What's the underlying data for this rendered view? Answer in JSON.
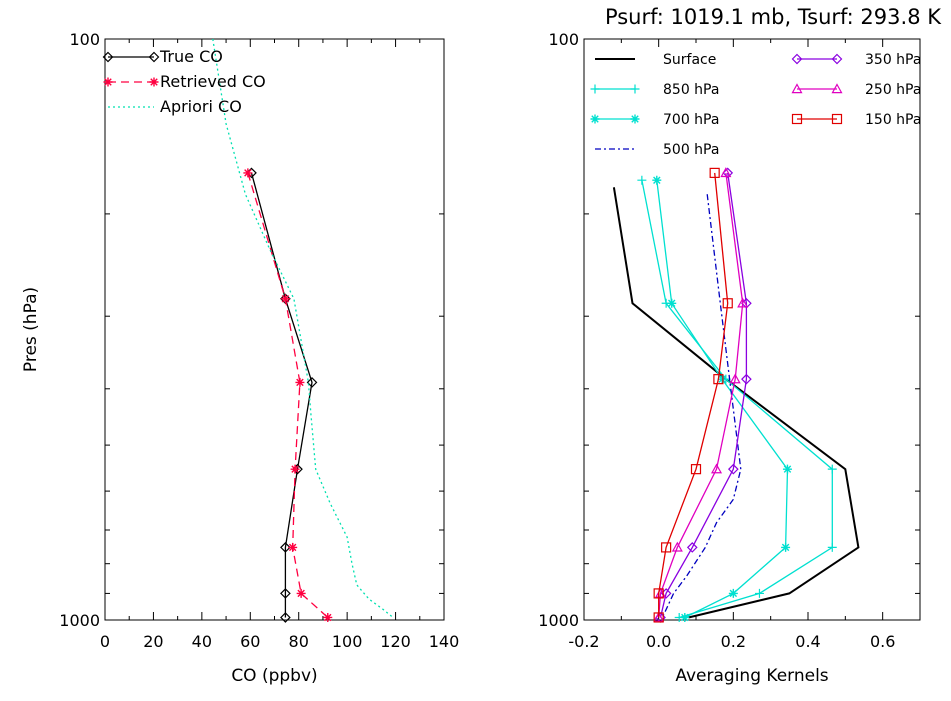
{
  "chart_data": [
    {
      "type": "line",
      "title": "",
      "xlabel": "CO (ppbv)",
      "ylabel": "Pres (hPa)",
      "xlim": [
        0,
        140
      ],
      "ylim_log": [
        1000,
        100
      ],
      "x_ticks": [
        0,
        20,
        40,
        60,
        80,
        100,
        120,
        140
      ],
      "y_tick_labels": [
        {
          "value": 100,
          "label": "100"
        },
        {
          "value": 1000,
          "label": "1000"
        }
      ],
      "legend_position": "top-left",
      "series": [
        {
          "name": "True CO",
          "color": "#000000",
          "dash": "",
          "marker": "diamond",
          "points": [
            [
              60.5,
              170
            ],
            [
              74.5,
              280
            ],
            [
              85.5,
              390
            ],
            [
              79.5,
              550
            ],
            [
              74.5,
              750
            ],
            [
              74.5,
              900
            ],
            [
              74.5,
              990
            ]
          ]
        },
        {
          "name": "Retrieved CO",
          "color": "#ff0040",
          "dash": "8,5",
          "marker": "asterisk",
          "points": [
            [
              59,
              170
            ],
            [
              74.5,
              280
            ],
            [
              80.5,
              390
            ],
            [
              78.5,
              550
            ],
            [
              77.5,
              750
            ],
            [
              81,
              900
            ],
            [
              92,
              990
            ]
          ]
        },
        {
          "name": "Apriori CO",
          "color": "#00e0b0",
          "dash": "2,3",
          "marker": "none",
          "points": [
            [
              44.5,
              100
            ],
            [
              50,
              140
            ],
            [
              58,
              185
            ],
            [
              68,
              230
            ],
            [
              78,
              280
            ],
            [
              84,
              390
            ],
            [
              85,
              440
            ],
            [
              87,
              550
            ],
            [
              93,
              630
            ],
            [
              100,
              720
            ],
            [
              102,
              800
            ],
            [
              104,
              870
            ],
            [
              109,
              920
            ],
            [
              115,
              960
            ],
            [
              119,
              990
            ]
          ]
        }
      ]
    },
    {
      "type": "line",
      "title": "Psurf: 1019.1 mb, Tsurf: 293.8 K",
      "xlabel": "Averaging Kernels",
      "ylabel": "",
      "xlim": [
        -0.2,
        0.7
      ],
      "ylim_log": [
        1000,
        100
      ],
      "x_ticks": [
        -0.2,
        0.0,
        0.2,
        0.4,
        0.6
      ],
      "x_tick_labels": [
        "-0.2",
        "0.0",
        "0.2",
        "0.4",
        "0.6"
      ],
      "y_tick_labels": [
        {
          "value": 100,
          "label": "100"
        },
        {
          "value": 1000,
          "label": "1000"
        }
      ],
      "legend_position": "top",
      "series": [
        {
          "name": "Surface",
          "color": "#000000",
          "dash": "",
          "marker": "none",
          "width": 2,
          "points": [
            [
              -0.12,
              180
            ],
            [
              -0.07,
              285
            ],
            [
              0.18,
              385
            ],
            [
              0.5,
              550
            ],
            [
              0.535,
              750
            ],
            [
              0.35,
              900
            ],
            [
              0.08,
              990
            ]
          ]
        },
        {
          "name": "850 hPa",
          "color": "#00e0d0",
          "dash": "",
          "marker": "plus",
          "points": [
            [
              -0.045,
              175
            ],
            [
              0.02,
              285
            ],
            [
              0.18,
              385
            ],
            [
              0.465,
              550
            ],
            [
              0.465,
              750
            ],
            [
              0.27,
              900
            ],
            [
              0.055,
              990
            ]
          ]
        },
        {
          "name": "700 hPa",
          "color": "#00e0d0",
          "dash": "",
          "marker": "asterisk",
          "points": [
            [
              -0.005,
              175
            ],
            [
              0.035,
              285
            ],
            [
              0.17,
              385
            ],
            [
              0.345,
              550
            ],
            [
              0.34,
              750
            ],
            [
              0.2,
              900
            ],
            [
              0.07,
              990
            ]
          ]
        },
        {
          "name": "500 hPa",
          "color": "#0000c0",
          "dash": "6,3,2,3",
          "marker": "none",
          "points": [
            [
              0.13,
              185
            ],
            [
              0.165,
              285
            ],
            [
              0.19,
              385
            ],
            [
              0.22,
              550
            ],
            [
              0.2,
              620
            ],
            [
              0.155,
              680
            ],
            [
              0.125,
              750
            ],
            [
              0.075,
              840
            ],
            [
              0.04,
              900
            ],
            [
              0.01,
              990
            ]
          ]
        },
        {
          "name": "350 hPa",
          "color": "#8a00e0",
          "dash": "",
          "marker": "diamond",
          "points": [
            [
              0.185,
              170
            ],
            [
              0.235,
              285
            ],
            [
              0.235,
              385
            ],
            [
              0.2,
              550
            ],
            [
              0.09,
              750
            ],
            [
              0.02,
              900
            ],
            [
              0.005,
              990
            ]
          ]
        },
        {
          "name": "250 hPa",
          "color": "#e000c0",
          "dash": "",
          "marker": "triangle",
          "points": [
            [
              0.18,
              170
            ],
            [
              0.225,
              285
            ],
            [
              0.205,
              385
            ],
            [
              0.155,
              550
            ],
            [
              0.05,
              750
            ],
            [
              0.005,
              900
            ],
            [
              0.0,
              990
            ]
          ]
        },
        {
          "name": "150 hPa",
          "color": "#e00000",
          "dash": "",
          "marker": "square",
          "points": [
            [
              0.15,
              170
            ],
            [
              0.185,
              285
            ],
            [
              0.16,
              385
            ],
            [
              0.1,
              550
            ],
            [
              0.02,
              750
            ],
            [
              0.0,
              900
            ],
            [
              0.0,
              990
            ]
          ]
        }
      ]
    }
  ]
}
